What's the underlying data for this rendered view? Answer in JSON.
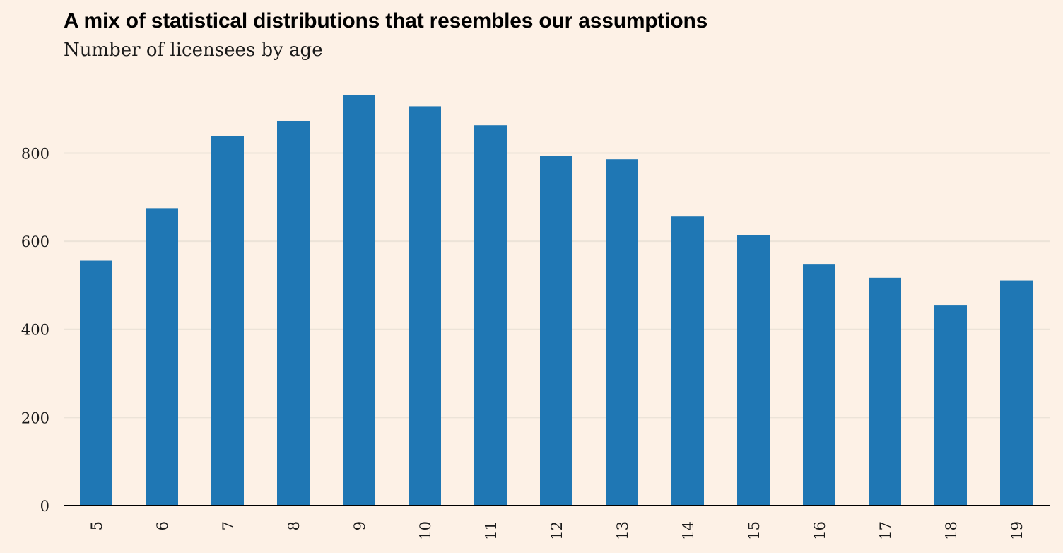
{
  "chart_data": {
    "type": "bar",
    "title": "A mix of statistical distributions that resembles our assumptions",
    "subtitle": "Number of licensees by age",
    "xlabel": "",
    "ylabel": "",
    "categories": [
      "5",
      "6",
      "7",
      "8",
      "9",
      "10",
      "11",
      "12",
      "13",
      "14",
      "15",
      "16",
      "17",
      "18",
      "19"
    ],
    "values": [
      556,
      675,
      838,
      873,
      932,
      906,
      863,
      794,
      786,
      656,
      613,
      547,
      517,
      454,
      511
    ],
    "ylim": [
      0,
      950
    ],
    "yticks": [
      0,
      200,
      400,
      600,
      800
    ],
    "ytick_labels": [
      "0",
      "200",
      "400",
      "600",
      "800"
    ],
    "grid": "horizontal",
    "bar_color": "#1f77b4",
    "gridline_color": "#ece3d8",
    "axis_color": "#000000",
    "background_color": "#fdf1e6"
  }
}
